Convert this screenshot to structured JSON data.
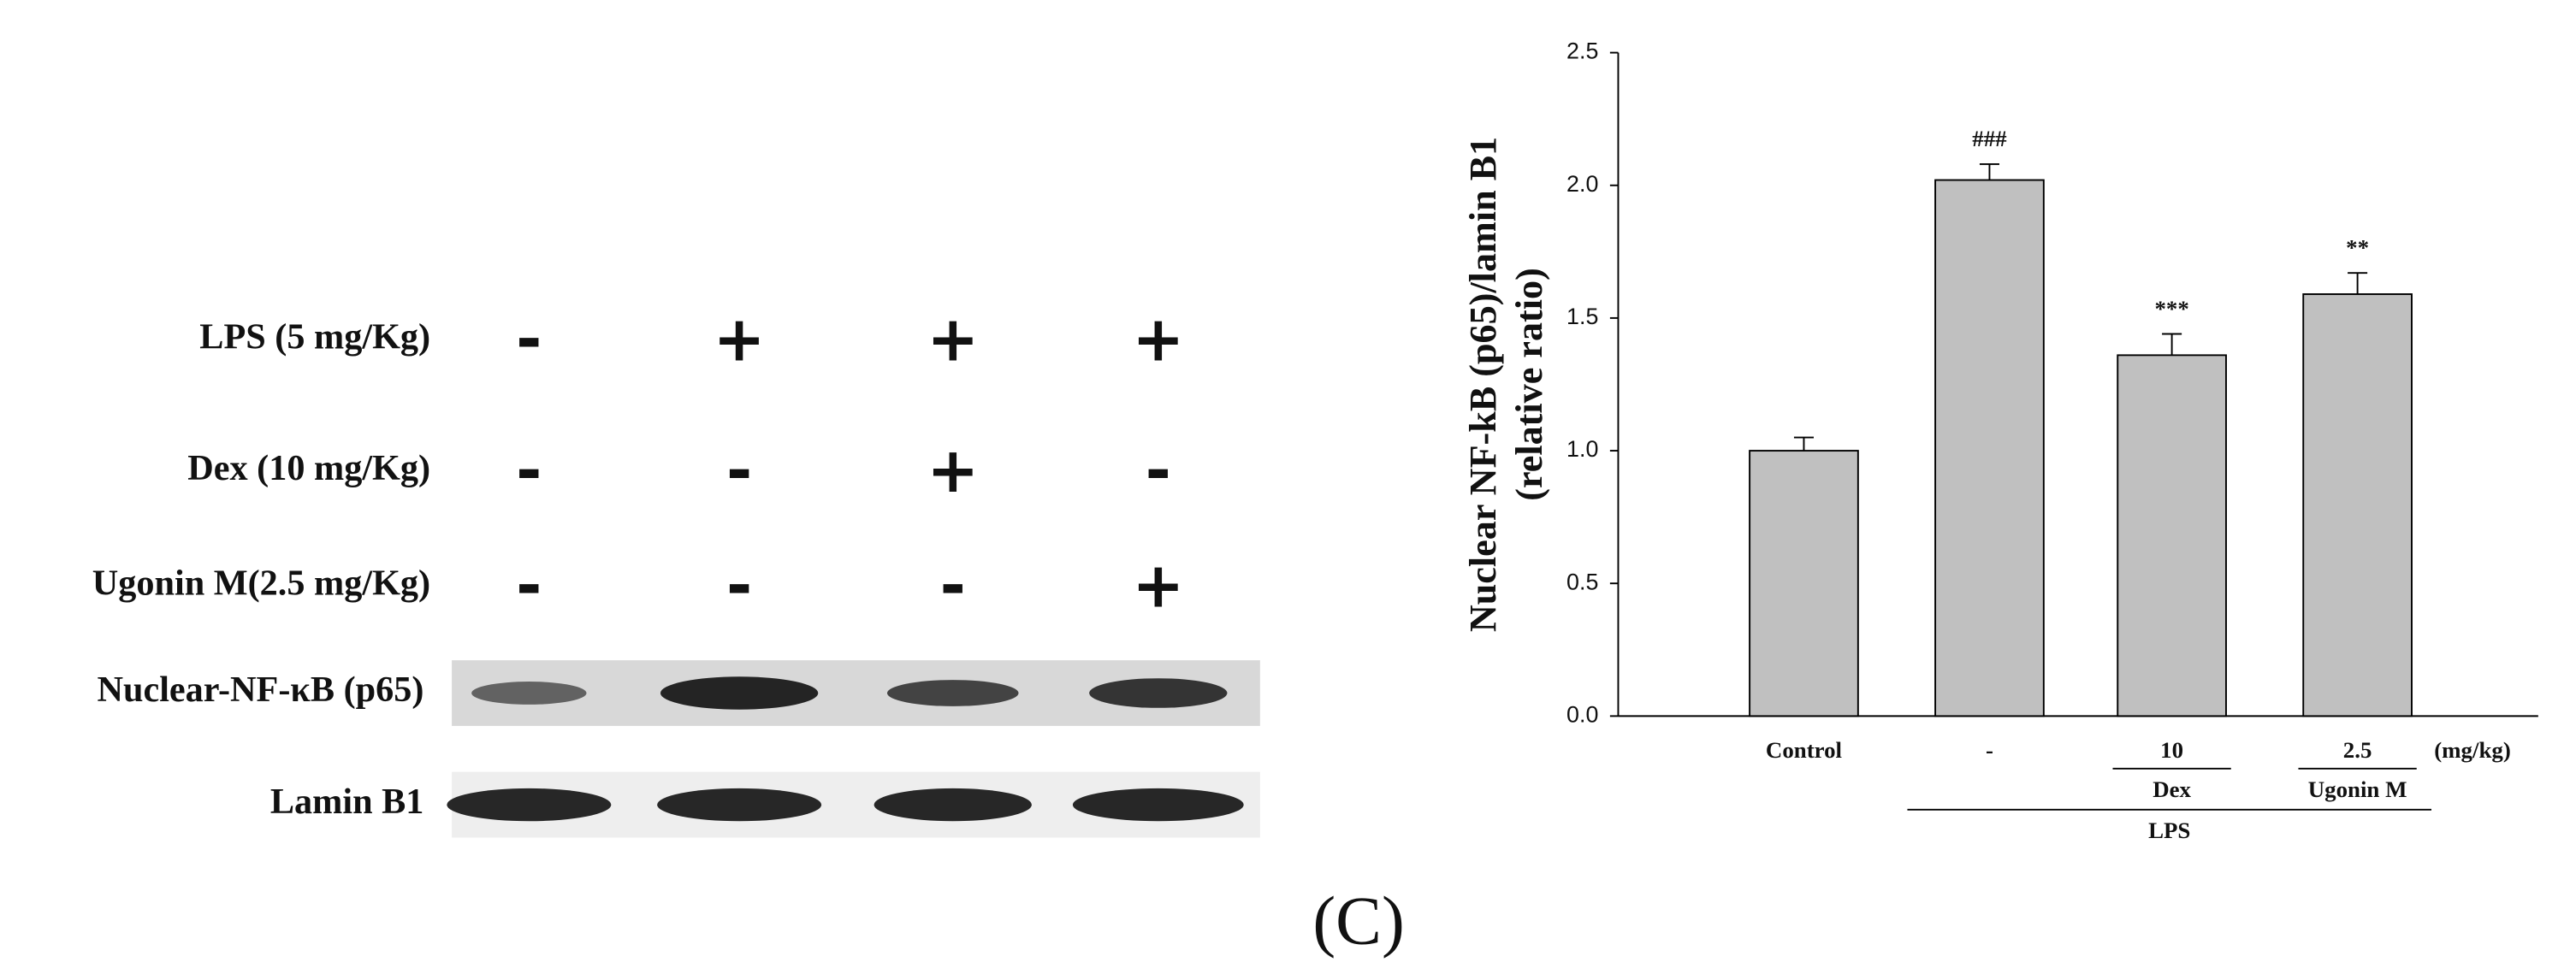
{
  "blot": {
    "treatments": [
      {
        "label": "LPS (5 mg/Kg)",
        "signs": [
          "-",
          "+",
          "+",
          "+"
        ]
      },
      {
        "label": "Dex (10 mg/Kg)",
        "signs": [
          "-",
          "-",
          "+",
          "-"
        ]
      },
      {
        "label": "Ugonin M(2.5 mg/Kg)",
        "signs": [
          "-",
          "-",
          "-",
          "+"
        ]
      }
    ],
    "bands": [
      {
        "label": "Nuclear-NF-κB (p65)"
      },
      {
        "label": "Lamin B1"
      }
    ]
  },
  "caption": "(C)",
  "chart_data": {
    "type": "bar",
    "ylabel": [
      "Nuclear NF-kB (p65)/lamin B1",
      "(relative ratio)"
    ],
    "categories": [
      "Control",
      "-",
      "10",
      "2.5"
    ],
    "values": [
      1.0,
      2.02,
      1.36,
      1.59
    ],
    "errors": [
      0.05,
      0.06,
      0.08,
      0.08
    ],
    "annotations": [
      null,
      "###",
      "***",
      "**"
    ],
    "color": "#c0c0c0",
    "unit_label": "(mg/kg)",
    "groups": [
      {
        "label": "Dex",
        "span": [
          2,
          2
        ]
      },
      {
        "label": "Ugonin M",
        "span": [
          3,
          3
        ]
      },
      {
        "label": "LPS",
        "span": [
          1,
          3
        ]
      }
    ],
    "ylim": [
      0,
      2.5
    ],
    "yticks": [
      {
        "value": 0,
        "label": "0.0"
      },
      0.5,
      {
        "value": 1,
        "label": "1.0"
      },
      1.5,
      {
        "value": 2,
        "label": "2.0"
      },
      2.5
    ]
  }
}
